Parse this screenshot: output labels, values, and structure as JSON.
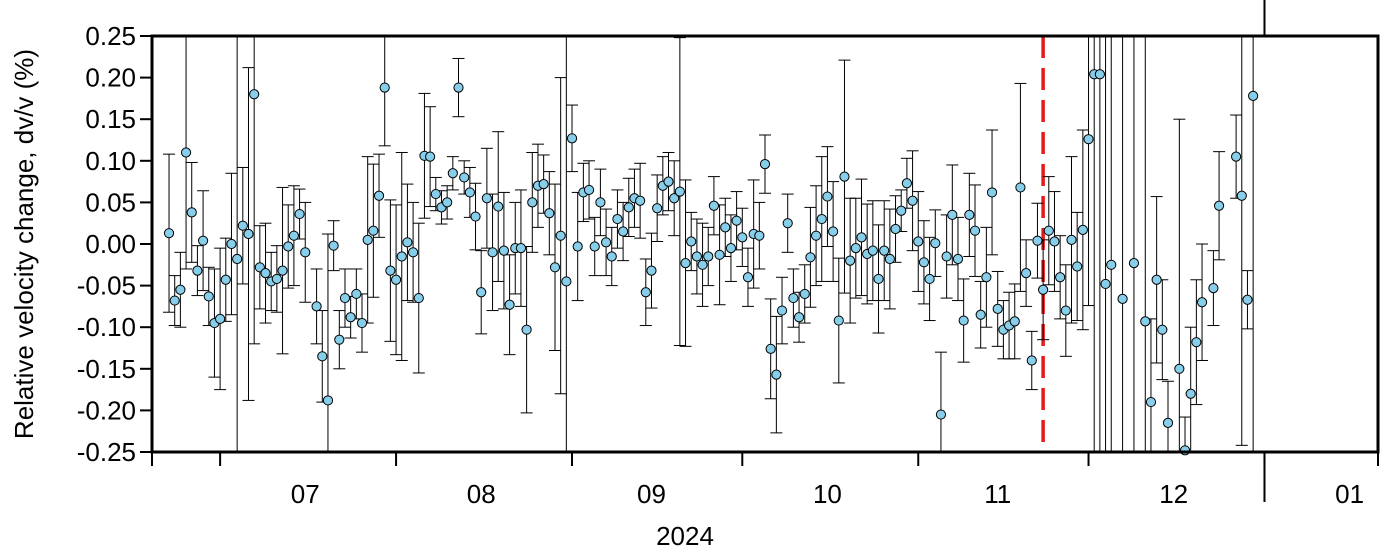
{
  "chart_data": {
    "type": "scatter",
    "title": "",
    "xlabel": "2024",
    "ylabel": "Relative velocity change, dv/v (%)",
    "ylim": [
      -0.25,
      0.25
    ],
    "xlim": [
      "2024-06-19",
      "2025-01-21"
    ],
    "grid": false,
    "legend": "none",
    "marker_color": "#87ceeb",
    "errorbar_color": "#000000",
    "y_ticks": [
      "0.25",
      "0.20",
      "0.15",
      "0.10",
      "0.05",
      "0.00",
      "-0.05",
      "-0.10",
      "-0.15",
      "-0.20",
      "-0.25"
    ],
    "x_ticks": [
      {
        "label": "07",
        "date": "2024-07-16"
      },
      {
        "label": "08",
        "date": "2024-08-16"
      },
      {
        "label": "09",
        "date": "2024-09-15"
      },
      {
        "label": "10",
        "date": "2024-10-16"
      },
      {
        "label": "11",
        "date": "2024-11-15"
      },
      {
        "label": "12",
        "date": "2024-12-16"
      },
      {
        "label": "01",
        "date": "2025-01-16"
      }
    ],
    "month_boundaries": [
      "2024-07-01",
      "2024-08-01",
      "2024-09-01",
      "2024-10-01",
      "2024-11-01",
      "2024-12-01",
      "2025-01-01"
    ],
    "year_boundary": "2025-01-01",
    "reference_line": {
      "date": "2024-11-23",
      "color": "#e41a1c",
      "style": "dashed"
    },
    "points": [
      {
        "x": "2024-06-22",
        "y": 0.013,
        "err": 0.095
      },
      {
        "x": "2024-06-23",
        "y": -0.068,
        "err": 0.03
      },
      {
        "x": "2024-06-24",
        "y": -0.055,
        "err": 0.045
      },
      {
        "x": "2024-06-25",
        "y": 0.11,
        "err": 0.14
      },
      {
        "x": "2024-06-26",
        "y": 0.038,
        "err": 0.06
      },
      {
        "x": "2024-06-27",
        "y": -0.032,
        "err": 0.03
      },
      {
        "x": "2024-06-28",
        "y": 0.004,
        "err": 0.06
      },
      {
        "x": "2024-06-29",
        "y": -0.063,
        "err": 0.035
      },
      {
        "x": "2024-06-30",
        "y": -0.095,
        "err": 0.065
      },
      {
        "x": "2024-07-01",
        "y": -0.09,
        "err": 0.085
      },
      {
        "x": "2024-07-02",
        "y": -0.043,
        "err": 0.05
      },
      {
        "x": "2024-07-03",
        "y": 0.0,
        "err": 0.085
      },
      {
        "x": "2024-07-04",
        "y": -0.018,
        "err": 0.3
      },
      {
        "x": "2024-07-05",
        "y": 0.022,
        "err": 0.07
      },
      {
        "x": "2024-07-06",
        "y": 0.012,
        "err": 0.2
      },
      {
        "x": "2024-07-07",
        "y": 0.18,
        "err": 0.3
      },
      {
        "x": "2024-07-08",
        "y": -0.028,
        "err": 0.05
      },
      {
        "x": "2024-07-09",
        "y": -0.035,
        "err": 0.06
      },
      {
        "x": "2024-07-10",
        "y": -0.045,
        "err": 0.035
      },
      {
        "x": "2024-07-11",
        "y": -0.042,
        "err": 0.04
      },
      {
        "x": "2024-07-12",
        "y": -0.032,
        "err": 0.1
      },
      {
        "x": "2024-07-13",
        "y": -0.003,
        "err": 0.05
      },
      {
        "x": "2024-07-14",
        "y": 0.01,
        "err": 0.06
      },
      {
        "x": "2024-07-15",
        "y": 0.036,
        "err": 0.03
      },
      {
        "x": "2024-07-16",
        "y": -0.01,
        "err": 0.06
      },
      {
        "x": "2024-07-18",
        "y": -0.075,
        "err": 0.045
      },
      {
        "x": "2024-07-19",
        "y": -0.135,
        "err": 0.055
      },
      {
        "x": "2024-07-20",
        "y": -0.188,
        "err": 0.2
      },
      {
        "x": "2024-07-21",
        "y": -0.002,
        "err": 0.03
      },
      {
        "x": "2024-07-22",
        "y": -0.115,
        "err": 0.035
      },
      {
        "x": "2024-07-23",
        "y": -0.065,
        "err": 0.035
      },
      {
        "x": "2024-07-24",
        "y": -0.088,
        "err": 0.025
      },
      {
        "x": "2024-07-25",
        "y": -0.06,
        "err": 0.03
      },
      {
        "x": "2024-07-26",
        "y": -0.095,
        "err": 0.035
      },
      {
        "x": "2024-07-27",
        "y": 0.005,
        "err": 0.1
      },
      {
        "x": "2024-07-28",
        "y": 0.016,
        "err": 0.08
      },
      {
        "x": "2024-07-29",
        "y": 0.058,
        "err": 0.05
      },
      {
        "x": "2024-07-30",
        "y": 0.188,
        "err": 0.07
      },
      {
        "x": "2024-07-31",
        "y": -0.032,
        "err": 0.085
      },
      {
        "x": "2024-08-01",
        "y": -0.043,
        "err": 0.09
      },
      {
        "x": "2024-08-02",
        "y": -0.015,
        "err": 0.125
      },
      {
        "x": "2024-08-03",
        "y": 0.002,
        "err": 0.07
      },
      {
        "x": "2024-08-04",
        "y": -0.01,
        "err": 0.06
      },
      {
        "x": "2024-08-05",
        "y": -0.065,
        "err": 0.09
      },
      {
        "x": "2024-08-06",
        "y": 0.106,
        "err": 0.075
      },
      {
        "x": "2024-08-07",
        "y": 0.105,
        "err": 0.06
      },
      {
        "x": "2024-08-08",
        "y": 0.06,
        "err": 0.02
      },
      {
        "x": "2024-08-09",
        "y": 0.044,
        "err": 0.02
      },
      {
        "x": "2024-08-10",
        "y": 0.05,
        "err": 0.02
      },
      {
        "x": "2024-08-11",
        "y": 0.085,
        "err": 0.02
      },
      {
        "x": "2024-08-12",
        "y": 0.188,
        "err": 0.035
      },
      {
        "x": "2024-08-13",
        "y": 0.08,
        "err": 0.02
      },
      {
        "x": "2024-08-14",
        "y": 0.062,
        "err": 0.03
      },
      {
        "x": "2024-08-15",
        "y": 0.033,
        "err": 0.04
      },
      {
        "x": "2024-08-16",
        "y": -0.058,
        "err": 0.05
      },
      {
        "x": "2024-08-17",
        "y": 0.055,
        "err": 0.06
      },
      {
        "x": "2024-08-18",
        "y": -0.01,
        "err": 0.07
      },
      {
        "x": "2024-08-19",
        "y": 0.045,
        "err": 0.09
      },
      {
        "x": "2024-08-20",
        "y": -0.008,
        "err": 0.07
      },
      {
        "x": "2024-08-21",
        "y": -0.073,
        "err": 0.06
      },
      {
        "x": "2024-08-22",
        "y": -0.005,
        "err": 0.055
      },
      {
        "x": "2024-08-23",
        "y": -0.005,
        "err": 0.07
      },
      {
        "x": "2024-08-24",
        "y": -0.103,
        "err": 0.1
      },
      {
        "x": "2024-08-25",
        "y": 0.05,
        "err": 0.06
      },
      {
        "x": "2024-08-26",
        "y": 0.07,
        "err": 0.05
      },
      {
        "x": "2024-08-27",
        "y": 0.072,
        "err": 0.035
      },
      {
        "x": "2024-08-28",
        "y": 0.037,
        "err": 0.05
      },
      {
        "x": "2024-08-29",
        "y": -0.028,
        "err": 0.1
      },
      {
        "x": "2024-08-30",
        "y": 0.01,
        "err": 0.19
      },
      {
        "x": "2024-08-31",
        "y": -0.045,
        "err": 0.3
      },
      {
        "x": "2024-09-01",
        "y": 0.127,
        "err": 0.04
      },
      {
        "x": "2024-09-02",
        "y": -0.003,
        "err": 0.065
      },
      {
        "x": "2024-09-03",
        "y": 0.062,
        "err": 0.035
      },
      {
        "x": "2024-09-04",
        "y": 0.065,
        "err": 0.035
      },
      {
        "x": "2024-09-05",
        "y": -0.003,
        "err": 0.035
      },
      {
        "x": "2024-09-06",
        "y": 0.05,
        "err": 0.04
      },
      {
        "x": "2024-09-07",
        "y": 0.002,
        "err": 0.04
      },
      {
        "x": "2024-09-08",
        "y": -0.015,
        "err": 0.035
      },
      {
        "x": "2024-09-09",
        "y": 0.03,
        "err": 0.035
      },
      {
        "x": "2024-09-10",
        "y": 0.015,
        "err": 0.035
      },
      {
        "x": "2024-09-11",
        "y": 0.044,
        "err": 0.035
      },
      {
        "x": "2024-09-12",
        "y": 0.055,
        "err": 0.035
      },
      {
        "x": "2024-09-13",
        "y": 0.052,
        "err": 0.045
      },
      {
        "x": "2024-09-14",
        "y": -0.058,
        "err": 0.04
      },
      {
        "x": "2024-09-15",
        "y": -0.032,
        "err": 0.045
      },
      {
        "x": "2024-09-16",
        "y": 0.043,
        "err": 0.04
      },
      {
        "x": "2024-09-17",
        "y": 0.07,
        "err": 0.035
      },
      {
        "x": "2024-09-18",
        "y": 0.075,
        "err": 0.035
      },
      {
        "x": "2024-09-19",
        "y": 0.055,
        "err": 0.045
      },
      {
        "x": "2024-09-20",
        "y": 0.063,
        "err": 0.185
      },
      {
        "x": "2024-09-21",
        "y": -0.023,
        "err": 0.1
      },
      {
        "x": "2024-09-22",
        "y": 0.003,
        "err": 0.035
      },
      {
        "x": "2024-09-23",
        "y": -0.015,
        "err": 0.045
      },
      {
        "x": "2024-09-24",
        "y": -0.025,
        "err": 0.05
      },
      {
        "x": "2024-09-25",
        "y": -0.015,
        "err": 0.035
      },
      {
        "x": "2024-09-26",
        "y": 0.046,
        "err": 0.035
      },
      {
        "x": "2024-09-27",
        "y": -0.013,
        "err": 0.06
      },
      {
        "x": "2024-09-28",
        "y": 0.02,
        "err": 0.035
      },
      {
        "x": "2024-09-29",
        "y": -0.005,
        "err": 0.04
      },
      {
        "x": "2024-09-30",
        "y": 0.028,
        "err": 0.035
      },
      {
        "x": "2024-10-01",
        "y": 0.008,
        "err": 0.035
      },
      {
        "x": "2024-10-02",
        "y": -0.04,
        "err": 0.035
      },
      {
        "x": "2024-10-03",
        "y": 0.012,
        "err": 0.065
      },
      {
        "x": "2024-10-04",
        "y": 0.01,
        "err": 0.04
      },
      {
        "x": "2024-10-05",
        "y": 0.096,
        "err": 0.035
      },
      {
        "x": "2024-10-06",
        "y": -0.126,
        "err": 0.06
      },
      {
        "x": "2024-10-07",
        "y": -0.157,
        "err": 0.07
      },
      {
        "x": "2024-10-08",
        "y": -0.08,
        "err": 0.04
      },
      {
        "x": "2024-10-09",
        "y": 0.025,
        "err": 0.035
      },
      {
        "x": "2024-10-10",
        "y": -0.065,
        "err": 0.035
      },
      {
        "x": "2024-10-11",
        "y": -0.088,
        "err": 0.03
      },
      {
        "x": "2024-10-12",
        "y": -0.06,
        "err": 0.035
      },
      {
        "x": "2024-10-13",
        "y": -0.016,
        "err": 0.06
      },
      {
        "x": "2024-10-14",
        "y": 0.01,
        "err": 0.06
      },
      {
        "x": "2024-10-15",
        "y": 0.03,
        "err": 0.075
      },
      {
        "x": "2024-10-16",
        "y": 0.057,
        "err": 0.06
      },
      {
        "x": "2024-10-17",
        "y": 0.015,
        "err": 0.06
      },
      {
        "x": "2024-10-18",
        "y": -0.092,
        "err": 0.075
      },
      {
        "x": "2024-10-19",
        "y": 0.081,
        "err": 0.14
      },
      {
        "x": "2024-10-20",
        "y": -0.02,
        "err": 0.075
      },
      {
        "x": "2024-10-21",
        "y": -0.005,
        "err": 0.06
      },
      {
        "x": "2024-10-22",
        "y": 0.008,
        "err": 0.07
      },
      {
        "x": "2024-10-23",
        "y": -0.012,
        "err": 0.06
      },
      {
        "x": "2024-10-24",
        "y": -0.008,
        "err": 0.06
      },
      {
        "x": "2024-10-25",
        "y": -0.042,
        "err": 0.065
      },
      {
        "x": "2024-10-26",
        "y": -0.008,
        "err": 0.06
      },
      {
        "x": "2024-10-27",
        "y": -0.018,
        "err": 0.06
      },
      {
        "x": "2024-10-28",
        "y": 0.018,
        "err": 0.04
      },
      {
        "x": "2024-10-29",
        "y": 0.04,
        "err": 0.025
      },
      {
        "x": "2024-10-30",
        "y": 0.073,
        "err": 0.03
      },
      {
        "x": "2024-10-31",
        "y": 0.052,
        "err": 0.06
      },
      {
        "x": "2024-11-01",
        "y": 0.003,
        "err": 0.06
      },
      {
        "x": "2024-11-02",
        "y": -0.022,
        "err": 0.05
      },
      {
        "x": "2024-11-03",
        "y": -0.042,
        "err": 0.05
      },
      {
        "x": "2024-11-04",
        "y": 0.001,
        "err": 0.04
      },
      {
        "x": "2024-11-05",
        "y": -0.205,
        "err": 0.075
      },
      {
        "x": "2024-11-06",
        "y": -0.015,
        "err": 0.05
      },
      {
        "x": "2024-11-07",
        "y": 0.035,
        "err": 0.06
      },
      {
        "x": "2024-11-08",
        "y": -0.018,
        "err": 0.05
      },
      {
        "x": "2024-11-09",
        "y": -0.092,
        "err": 0.05
      },
      {
        "x": "2024-11-10",
        "y": 0.035,
        "err": 0.05
      },
      {
        "x": "2024-11-11",
        "y": 0.016,
        "err": 0.055
      },
      {
        "x": "2024-11-12",
        "y": -0.085,
        "err": 0.04
      },
      {
        "x": "2024-11-13",
        "y": -0.04,
        "err": 0.06
      },
      {
        "x": "2024-11-14",
        "y": 0.062,
        "err": 0.075
      },
      {
        "x": "2024-11-15",
        "y": -0.078,
        "err": 0.045
      },
      {
        "x": "2024-11-16",
        "y": -0.103,
        "err": 0.035
      },
      {
        "x": "2024-11-17",
        "y": -0.098,
        "err": 0.04
      },
      {
        "x": "2024-11-18",
        "y": -0.093,
        "err": 0.045
      },
      {
        "x": "2024-11-19",
        "y": 0.068,
        "err": 0.125
      },
      {
        "x": "2024-11-20",
        "y": -0.035,
        "err": 0.04
      },
      {
        "x": "2024-11-21",
        "y": -0.14,
        "err": 0.035
      },
      {
        "x": "2024-11-22",
        "y": 0.004,
        "err": 0.045
      },
      {
        "x": "2024-11-23",
        "y": -0.055,
        "err": 0.06
      },
      {
        "x": "2024-11-24",
        "y": 0.016,
        "err": 0.065
      },
      {
        "x": "2024-11-25",
        "y": 0.003,
        "err": 0.06
      },
      {
        "x": "2024-11-26",
        "y": -0.04,
        "err": 0.05
      },
      {
        "x": "2024-11-27",
        "y": -0.08,
        "err": 0.055
      },
      {
        "x": "2024-11-28",
        "y": 0.005,
        "err": 0.1
      },
      {
        "x": "2024-11-29",
        "y": -0.027,
        "err": 0.065
      },
      {
        "x": "2024-11-30",
        "y": 0.017,
        "err": 0.12
      },
      {
        "x": "2024-12-01",
        "y": 0.126,
        "err": 0.2
      },
      {
        "x": "2024-12-02",
        "y": 0.204,
        "err": 0.5
      },
      {
        "x": "2024-12-03",
        "y": 0.204,
        "err": 0.5
      },
      {
        "x": "2024-12-04",
        "y": -0.048,
        "err": 0.5
      },
      {
        "x": "2024-12-05",
        "y": -0.025,
        "err": 0.5
      },
      {
        "x": "2024-12-07",
        "y": -0.066,
        "err": 0.5
      },
      {
        "x": "2024-12-09",
        "y": -0.023,
        "err": 0.5
      },
      {
        "x": "2024-12-11",
        "y": -0.093,
        "err": 0.5
      },
      {
        "x": "2024-12-12",
        "y": -0.19,
        "err": 0.1
      },
      {
        "x": "2024-12-13",
        "y": -0.043,
        "err": 0.1
      },
      {
        "x": "2024-12-14",
        "y": -0.103,
        "err": 0.06
      },
      {
        "x": "2024-12-15",
        "y": -0.215,
        "err": 0.05
      },
      {
        "x": "2024-12-17",
        "y": -0.15,
        "err": 0.3
      },
      {
        "x": "2024-12-18",
        "y": -0.248,
        "err": 0.04
      },
      {
        "x": "2024-12-19",
        "y": -0.18,
        "err": 0.08
      },
      {
        "x": "2024-12-20",
        "y": -0.118,
        "err": 0.075
      },
      {
        "x": "2024-12-21",
        "y": -0.07,
        "err": 0.07
      },
      {
        "x": "2024-12-23",
        "y": -0.053,
        "err": 0.045
      },
      {
        "x": "2024-12-24",
        "y": 0.046,
        "err": 0.065
      },
      {
        "x": "2024-12-27",
        "y": 0.105,
        "err": 0.05
      },
      {
        "x": "2024-12-28",
        "y": 0.058,
        "err": 0.3
      },
      {
        "x": "2024-12-29",
        "y": -0.067,
        "err": 0.035
      },
      {
        "x": "2024-12-30",
        "y": 0.178,
        "err": 0.5
      }
    ]
  }
}
